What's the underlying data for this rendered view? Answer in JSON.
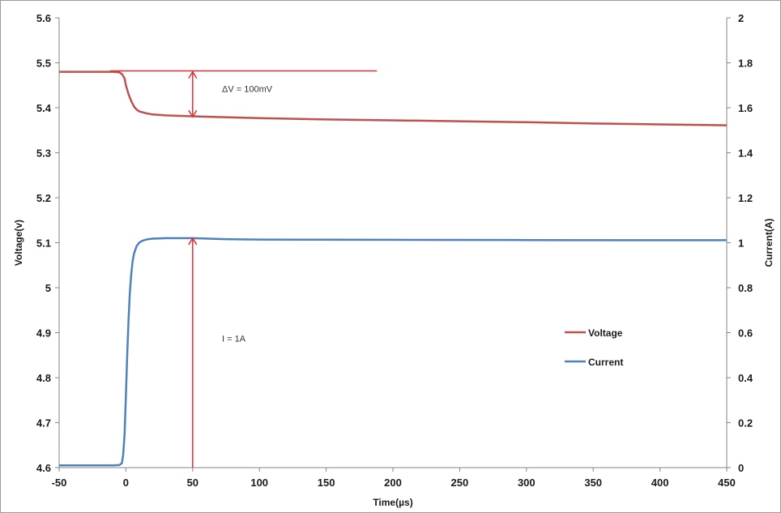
{
  "chart_data": {
    "type": "line",
    "xlabel": "Time(µs)",
    "ylabel": "Voltage(v)",
    "y2label": "Current(A)",
    "xlim": [
      -50,
      450
    ],
    "ylim": [
      4.6,
      5.6
    ],
    "y2lim": [
      0,
      2
    ],
    "x_ticks": [
      -50,
      0,
      50,
      100,
      150,
      200,
      250,
      300,
      350,
      400,
      450
    ],
    "y_ticks": [
      4.6,
      4.7,
      4.8,
      4.9,
      5,
      5.1,
      5.2,
      5.3,
      5.4,
      5.5,
      5.6
    ],
    "y2_ticks": [
      0,
      0.2,
      0.4,
      0.6,
      0.8,
      1,
      1.2,
      1.4,
      1.6,
      1.8,
      2
    ],
    "grid": false,
    "legend_position": "right-middle",
    "series": [
      {
        "name": "Voltage",
        "axis": "left",
        "color": "#c0504d",
        "x": [
          -50,
          -10,
          -5,
          -3,
          -1,
          0,
          2,
          4,
          6,
          8,
          10,
          15,
          20,
          30,
          50,
          100,
          150,
          200,
          250,
          300,
          350,
          400,
          450
        ],
        "y": [
          5.48,
          5.48,
          5.479,
          5.475,
          5.465,
          5.45,
          5.43,
          5.415,
          5.403,
          5.396,
          5.392,
          5.388,
          5.385,
          5.383,
          5.381,
          5.377,
          5.374,
          5.372,
          5.37,
          5.368,
          5.365,
          5.363,
          5.361
        ]
      },
      {
        "name": "Current",
        "axis": "right",
        "color": "#4f81bd",
        "x": [
          -50,
          -10,
          -5,
          -3,
          -2,
          -1,
          0,
          1,
          2,
          3,
          4,
          5,
          6,
          8,
          10,
          12,
          14,
          16,
          20,
          30,
          50,
          75,
          100,
          200,
          300,
          400,
          450
        ],
        "y": [
          0.01,
          0.01,
          0.011,
          0.02,
          0.06,
          0.15,
          0.32,
          0.5,
          0.66,
          0.78,
          0.86,
          0.915,
          0.95,
          0.985,
          1.0,
          1.008,
          1.012,
          1.015,
          1.018,
          1.02,
          1.02,
          1.016,
          1.014,
          1.013,
          1.012,
          1.011,
          1.011
        ]
      }
    ],
    "annotations": [
      {
        "text": "ΔV = 100mV",
        "x": 72,
        "y": 5.435,
        "arrow": {
          "x": 50,
          "from": 5.48,
          "to": 5.38,
          "color": "#e03030"
        }
      },
      {
        "text": "I = 1A",
        "x": 72,
        "y": 4.88,
        "arrow": {
          "x": 50,
          "from": 4.6,
          "to": 5.11,
          "color": "#e03030"
        }
      }
    ],
    "reference_line": {
      "from_x": -12,
      "to_x": 188,
      "y": 5.482,
      "color": "#e03030"
    }
  }
}
